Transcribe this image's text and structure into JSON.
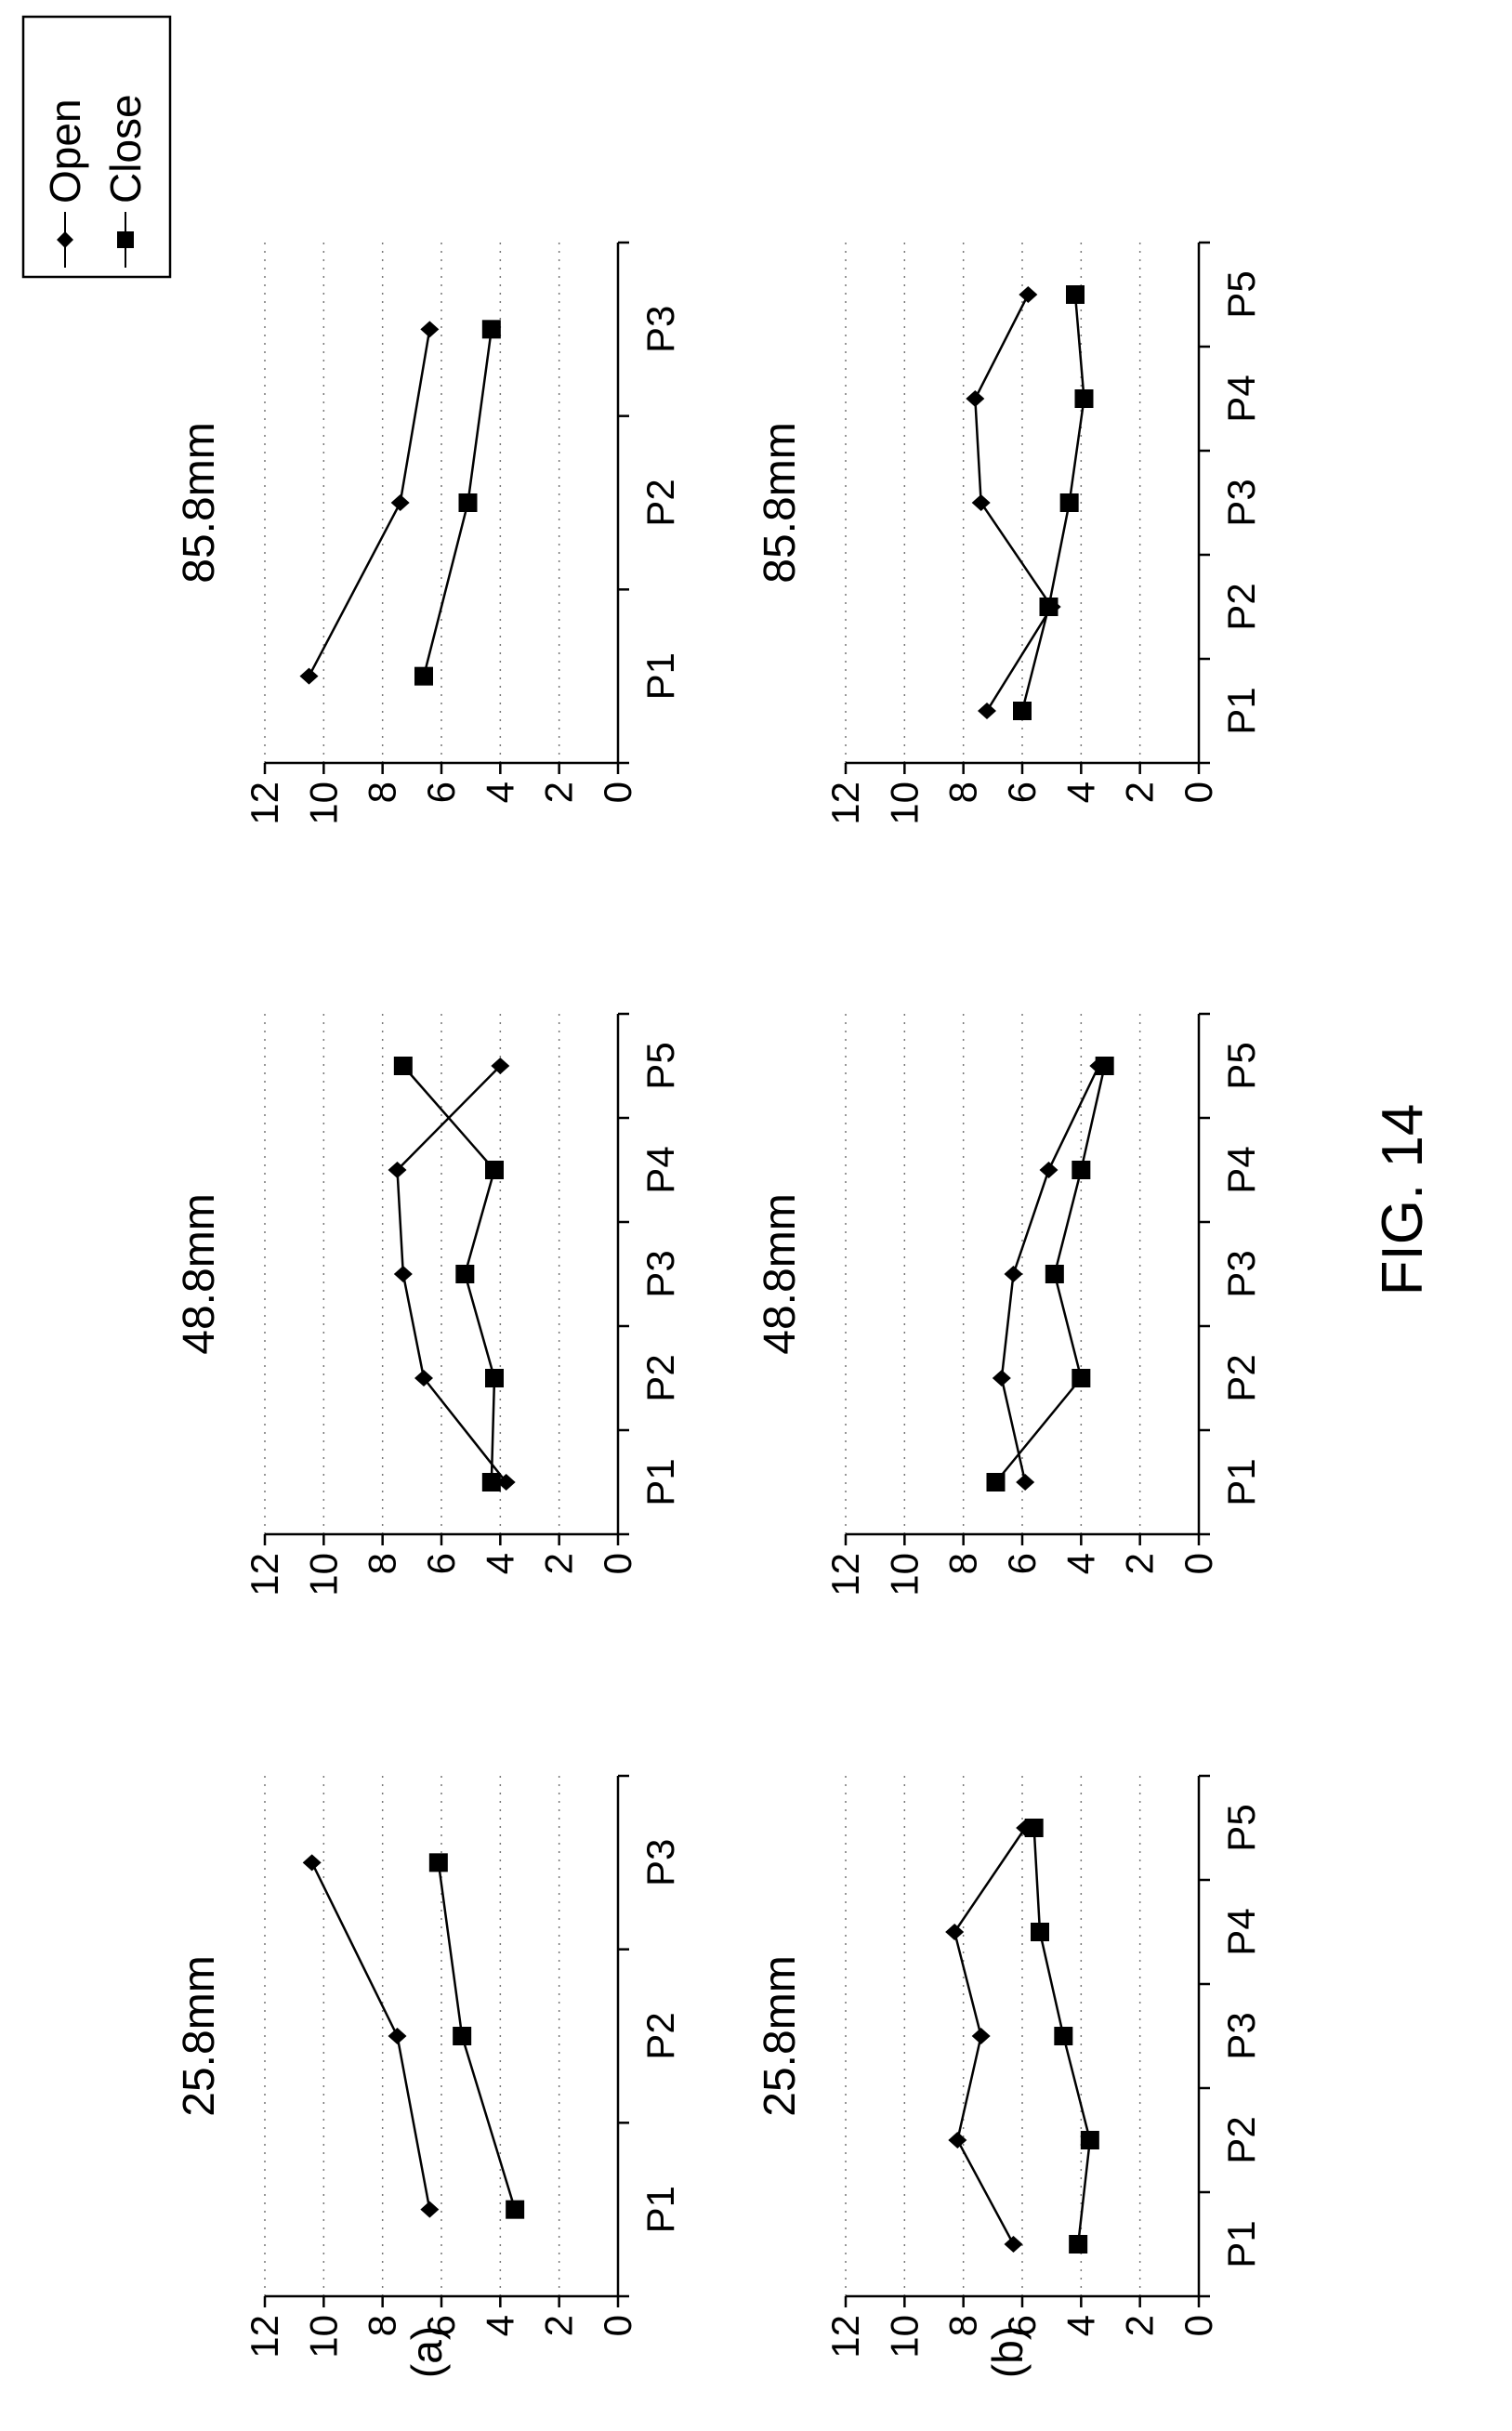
{
  "figure_caption": "FIG. 14",
  "legend": {
    "open_label": "Open",
    "close_label": "Close"
  },
  "row_labels": [
    "(a)",
    "(b)"
  ],
  "chart_data": [
    {
      "id": "a-25.8",
      "row": "(a)",
      "type": "line",
      "title": "25.8mm",
      "categories": [
        "P1",
        "P2",
        "P3"
      ],
      "ylim": [
        0,
        12
      ],
      "yticks": [
        "0",
        "2",
        "4",
        "6",
        "8",
        "10",
        "12"
      ],
      "grid": "dotted",
      "series": [
        {
          "name": "Open",
          "marker": "diamond",
          "values": [
            6.4,
            7.5,
            10.4
          ]
        },
        {
          "name": "Close",
          "marker": "square",
          "values": [
            3.5,
            5.3,
            6.1
          ]
        }
      ]
    },
    {
      "id": "a-48.8",
      "row": "(a)",
      "type": "line",
      "title": "48.8mm",
      "categories": [
        "P1",
        "P2",
        "P3",
        "P4",
        "P5"
      ],
      "ylim": [
        0,
        12
      ],
      "yticks": [
        "0",
        "2",
        "4",
        "6",
        "8",
        "10",
        "12"
      ],
      "grid": "dotted",
      "series": [
        {
          "name": "Open",
          "marker": "diamond",
          "values": [
            3.8,
            6.6,
            7.3,
            7.5,
            4.0
          ]
        },
        {
          "name": "Close",
          "marker": "square",
          "values": [
            4.3,
            4.2,
            5.2,
            4.2,
            7.3
          ]
        }
      ]
    },
    {
      "id": "a-85.8",
      "row": "(a)",
      "type": "line",
      "title": "85.8mm",
      "categories": [
        "P1",
        "P2",
        "P3"
      ],
      "ylim": [
        0,
        12
      ],
      "yticks": [
        "0",
        "2",
        "4",
        "6",
        "8",
        "10",
        "12"
      ],
      "grid": "dotted",
      "series": [
        {
          "name": "Open",
          "marker": "diamond",
          "values": [
            10.5,
            7.4,
            6.4
          ]
        },
        {
          "name": "Close",
          "marker": "square",
          "values": [
            6.6,
            5.1,
            4.3
          ]
        }
      ]
    },
    {
      "id": "b-25.8",
      "row": "(b)",
      "type": "line",
      "title": "25.8mm",
      "categories": [
        "P1",
        "P2",
        "P3",
        "P4",
        "P5"
      ],
      "ylim": [
        0,
        12
      ],
      "yticks": [
        "0",
        "2",
        "4",
        "6",
        "8",
        "10",
        "12"
      ],
      "grid": "dotted",
      "series": [
        {
          "name": "Open",
          "marker": "diamond",
          "values": [
            6.3,
            8.2,
            7.4,
            8.3,
            5.9
          ]
        },
        {
          "name": "Close",
          "marker": "square",
          "values": [
            4.1,
            3.7,
            4.6,
            5.4,
            5.6
          ]
        }
      ]
    },
    {
      "id": "b-48.8",
      "row": "(b)",
      "type": "line",
      "title": "48.8mm",
      "categories": [
        "P1",
        "P2",
        "P3",
        "P4",
        "P5"
      ],
      "ylim": [
        0,
        12
      ],
      "yticks": [
        "0",
        "2",
        "4",
        "6",
        "8",
        "10",
        "12"
      ],
      "grid": "dotted",
      "series": [
        {
          "name": "Open",
          "marker": "diamond",
          "values": [
            5.9,
            6.7,
            6.3,
            5.1,
            3.4
          ]
        },
        {
          "name": "Close",
          "marker": "square",
          "values": [
            6.9,
            4.0,
            4.9,
            4.0,
            3.2
          ]
        }
      ]
    },
    {
      "id": "b-85.8",
      "row": "(b)",
      "type": "line",
      "title": "85.8mm",
      "categories": [
        "P1",
        "P2",
        "P3",
        "P4",
        "P5"
      ],
      "ylim": [
        0,
        12
      ],
      "yticks": [
        "0",
        "2",
        "4",
        "6",
        "8",
        "10",
        "12"
      ],
      "grid": "dotted",
      "series": [
        {
          "name": "Open",
          "marker": "diamond",
          "values": [
            7.2,
            5.0,
            7.4,
            7.6,
            5.8
          ]
        },
        {
          "name": "Close",
          "marker": "square",
          "values": [
            6.0,
            5.1,
            4.4,
            3.9,
            4.2
          ]
        }
      ]
    }
  ]
}
